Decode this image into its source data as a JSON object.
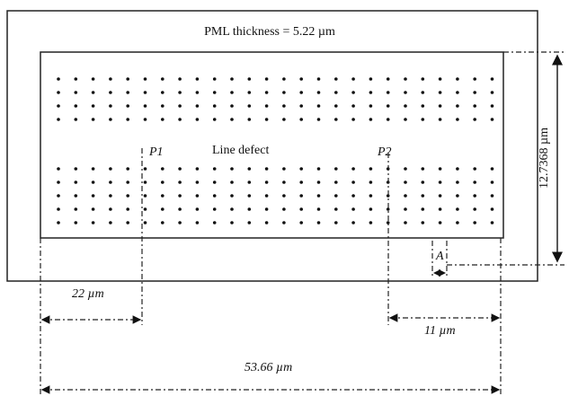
{
  "labels": {
    "pml": "PML thickness = 5.22 µm",
    "p1": "P1",
    "defect": "Line defect",
    "p2": "P2",
    "height": "12.7368 µm",
    "a": "A",
    "d22": "22 µm",
    "d11": "11 µm",
    "d5366": "53.66 µm"
  }
}
